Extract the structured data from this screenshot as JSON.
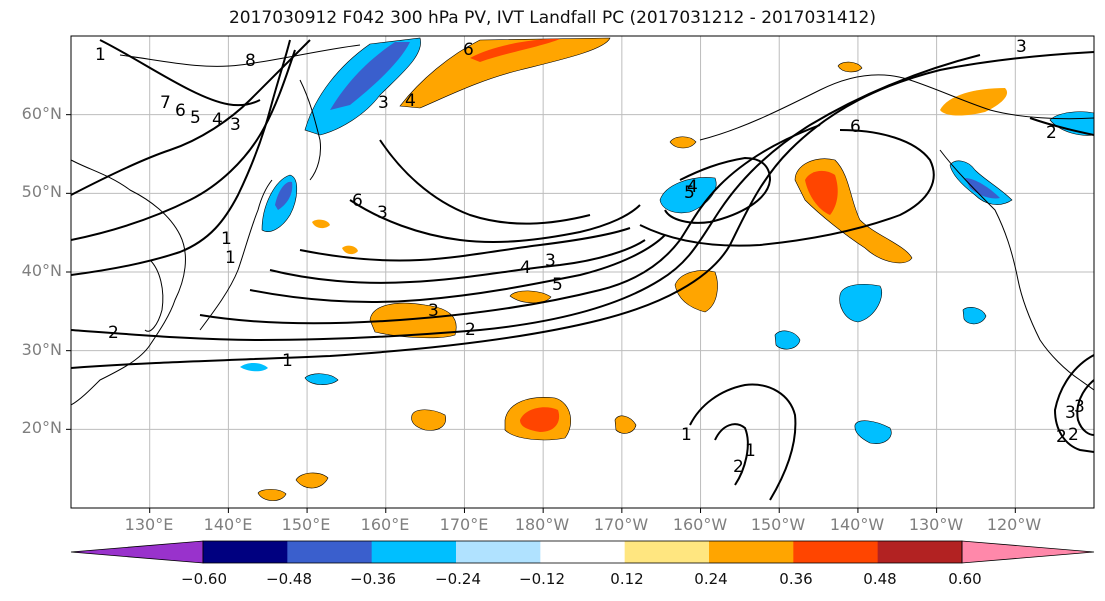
{
  "title": "2017030912 F042 300 hPa PV, IVT Landfall PC (2017031212 - 2017031412)",
  "map": {
    "projection": "equirectangular",
    "lon_range_east": [
      120,
      250
    ],
    "lat_range": [
      10,
      70
    ],
    "lat_labels": [
      "20°N",
      "30°N",
      "40°N",
      "50°N",
      "60°N"
    ],
    "lon_labels": [
      "130°E",
      "140°E",
      "150°E",
      "160°E",
      "170°E",
      "180°W",
      "170°W",
      "160°W",
      "150°W",
      "140°W",
      "130°W",
      "120°W"
    ],
    "contour_labels": [
      "1",
      "2",
      "3",
      "4",
      "5",
      "6",
      "7",
      "8",
      "1",
      "1",
      "1",
      "2",
      "3",
      "4",
      "5",
      "6",
      "3",
      "2",
      "3",
      "4",
      "5",
      "6",
      "3",
      "4",
      "2",
      "1",
      "2",
      "3",
      "3",
      "6",
      "1",
      "2",
      "3"
    ],
    "colors": {
      "contour": "#000000",
      "grid": "#bdbdbd",
      "coast": "#000000"
    }
  },
  "colorbar": {
    "ticks": [
      "−0.60",
      "−0.48",
      "−0.36",
      "−0.24",
      "−0.12",
      "0.12",
      "0.24",
      "0.36",
      "0.48",
      "0.60"
    ],
    "colors": [
      "#9932cc",
      "#000080",
      "#3a5fcd",
      "#00bfff",
      "#b0e2ff",
      "#ffffff",
      "#ffe680",
      "#ffa500",
      "#ff4500",
      "#b22222",
      "#ff88aa"
    ]
  }
}
